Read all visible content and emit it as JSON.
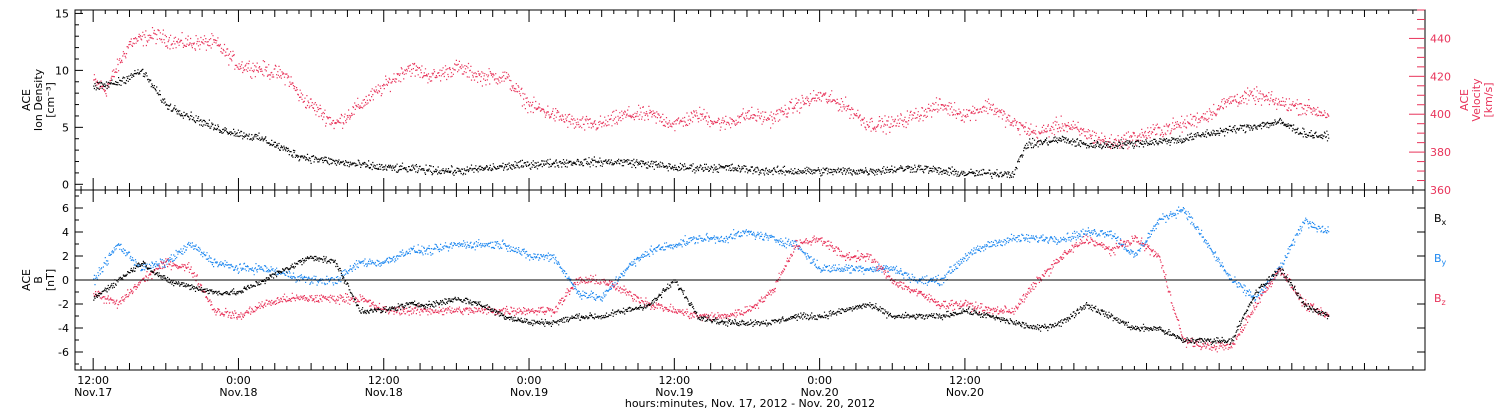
{
  "colors": {
    "black": "#000000",
    "red": "#e8335a",
    "blue": "#1e88f0",
    "frame": "#000000"
  },
  "chart_data": [
    {
      "type": "scatter",
      "panel": "top",
      "ylabel_left": [
        "ACE",
        "Ion Density",
        "[cm⁻³]"
      ],
      "ylabel_right": [
        "ACE",
        "Velocity",
        "[km/s]"
      ],
      "ylim_left": [
        -0.5,
        15.3
      ],
      "yticks_left": [
        0,
        5,
        10,
        15
      ],
      "ylim_right": [
        360,
        455
      ],
      "yticks_right": [
        360,
        380,
        400,
        420,
        440
      ],
      "series": [
        {
          "axis": "left",
          "color": "#000000",
          "knots": [
            [
              0,
              8.5
            ],
            [
              2,
              9
            ],
            [
              4,
              10
            ],
            [
              6,
              7
            ],
            [
              8,
              6
            ],
            [
              10,
              5
            ],
            [
              12,
              4.5
            ],
            [
              14,
              4
            ],
            [
              16,
              3
            ],
            [
              17,
              2.5
            ],
            [
              20,
              2
            ],
            [
              24,
              1.5
            ],
            [
              30,
              1.2
            ],
            [
              36,
              1.8
            ],
            [
              40,
              2
            ],
            [
              44,
              2
            ],
            [
              46,
              1.8
            ],
            [
              48,
              1.5
            ],
            [
              50,
              1.5
            ],
            [
              52,
              1.5
            ],
            [
              56,
              1.2
            ],
            [
              60,
              1.2
            ],
            [
              64,
              1.2
            ],
            [
              68,
              1.5
            ],
            [
              70,
              1.2
            ],
            [
              72,
              1.0
            ],
            [
              76,
              1.0
            ],
            [
              77,
              3.5
            ],
            [
              80,
              4
            ],
            [
              82,
              3.5
            ],
            [
              84,
              3.5
            ],
            [
              88,
              3.8
            ],
            [
              90,
              4
            ],
            [
              92,
              4.5
            ],
            [
              95,
              5
            ],
            [
              98,
              5.5
            ],
            [
              100,
              4.5
            ],
            [
              102,
              4.2
            ]
          ],
          "x_range": [
            0,
            102
          ]
        },
        {
          "axis": "right",
          "color": "#e8335a",
          "knots": [
            [
              0,
              418
            ],
            [
              1,
              413
            ],
            [
              3,
              438
            ],
            [
              5,
              442
            ],
            [
              7,
              438
            ],
            [
              10,
              438
            ],
            [
              12,
              426
            ],
            [
              14,
              424
            ],
            [
              16,
              420
            ],
            [
              17,
              410
            ],
            [
              20,
              395
            ],
            [
              22,
              405
            ],
            [
              24,
              415
            ],
            [
              26,
              425
            ],
            [
              28,
              420
            ],
            [
              30,
              425
            ],
            [
              32,
              420
            ],
            [
              34,
              420
            ],
            [
              36,
              405
            ],
            [
              38,
              400
            ],
            [
              40,
              395
            ],
            [
              42,
              395
            ],
            [
              44,
              400
            ],
            [
              46,
              400
            ],
            [
              48,
              395
            ],
            [
              50,
              400
            ],
            [
              52,
              395
            ],
            [
              54,
              400
            ],
            [
              56,
              398
            ],
            [
              58,
              405
            ],
            [
              60,
              410
            ],
            [
              62,
              405
            ],
            [
              64,
              395
            ],
            [
              66,
              395
            ],
            [
              68,
              400
            ],
            [
              70,
              405
            ],
            [
              72,
              400
            ],
            [
              74,
              405
            ],
            [
              76,
              395
            ],
            [
              78,
              390
            ],
            [
              80,
              395
            ],
            [
              82,
              390
            ],
            [
              84,
              385
            ],
            [
              86,
              388
            ],
            [
              88,
              392
            ],
            [
              90,
              395
            ],
            [
              92,
              400
            ],
            [
              94,
              408
            ],
            [
              96,
              410
            ],
            [
              98,
              406
            ],
            [
              100,
              404
            ],
            [
              102,
              400
            ]
          ],
          "x_range": [
            0,
            102
          ]
        }
      ]
    },
    {
      "type": "scatter",
      "panel": "bottom",
      "ylabel_left": [
        "ACE",
        "B",
        "[nT]"
      ],
      "ylim": [
        -7.5,
        7.5
      ],
      "yticks": [
        -6,
        -4,
        -2,
        0,
        2,
        4,
        6
      ],
      "zero_line": true,
      "legend_placement": "right",
      "series": [
        {
          "name": "Bx",
          "color": "#000000",
          "knots": [
            [
              0,
              -1.5
            ],
            [
              2,
              0
            ],
            [
              4,
              1.5
            ],
            [
              6,
              0
            ],
            [
              8,
              -0.5
            ],
            [
              10,
              -1
            ],
            [
              12,
              -1
            ],
            [
              14,
              0
            ],
            [
              16,
              1
            ],
            [
              18,
              2
            ],
            [
              20,
              1.5
            ],
            [
              22,
              -2.5
            ],
            [
              24,
              -2.5
            ],
            [
              26,
              -2
            ],
            [
              28,
              -2
            ],
            [
              30,
              -1.5
            ],
            [
              32,
              -2
            ],
            [
              34,
              -3
            ],
            [
              36,
              -3.5
            ],
            [
              38,
              -3.5
            ],
            [
              40,
              -3
            ],
            [
              42,
              -3
            ],
            [
              44,
              -2.5
            ],
            [
              46,
              -2
            ],
            [
              48,
              0
            ],
            [
              50,
              -3
            ],
            [
              52,
              -3.5
            ],
            [
              54,
              -3.5
            ],
            [
              56,
              -3.5
            ],
            [
              58,
              -3
            ],
            [
              60,
              -3
            ],
            [
              62,
              -2.5
            ],
            [
              64,
              -2
            ],
            [
              66,
              -3
            ],
            [
              68,
              -3
            ],
            [
              70,
              -3
            ],
            [
              72,
              -2.5
            ],
            [
              74,
              -3
            ],
            [
              76,
              -3.5
            ],
            [
              78,
              -4
            ],
            [
              80,
              -3.5
            ],
            [
              82,
              -2
            ],
            [
              84,
              -3
            ],
            [
              86,
              -4
            ],
            [
              88,
              -4
            ],
            [
              90,
              -5
            ],
            [
              92,
              -5
            ],
            [
              94,
              -5
            ],
            [
              96,
              -1
            ],
            [
              98,
              1
            ],
            [
              100,
              -2
            ],
            [
              102,
              -3
            ]
          ],
          "x_range": [
            0,
            102
          ]
        },
        {
          "name": "By",
          "color": "#1e88f0",
          "knots": [
            [
              0,
              0
            ],
            [
              2,
              3
            ],
            [
              4,
              1
            ],
            [
              6,
              1.5
            ],
            [
              8,
              3
            ],
            [
              10,
              1.5
            ],
            [
              12,
              1
            ],
            [
              14,
              1
            ],
            [
              16,
              0.5
            ],
            [
              18,
              0
            ],
            [
              20,
              0
            ],
            [
              22,
              1.5
            ],
            [
              24,
              1.5
            ],
            [
              26,
              2.5
            ],
            [
              28,
              2.5
            ],
            [
              30,
              3
            ],
            [
              32,
              3
            ],
            [
              34,
              3
            ],
            [
              36,
              2
            ],
            [
              38,
              2
            ],
            [
              40,
              -1
            ],
            [
              42,
              -1.5
            ],
            [
              44,
              1
            ],
            [
              46,
              2.5
            ],
            [
              48,
              3
            ],
            [
              50,
              3.5
            ],
            [
              52,
              3.5
            ],
            [
              54,
              4
            ],
            [
              56,
              3.5
            ],
            [
              58,
              3
            ],
            [
              60,
              1
            ],
            [
              62,
              1
            ],
            [
              64,
              1
            ],
            [
              66,
              1
            ],
            [
              68,
              0
            ],
            [
              70,
              0
            ],
            [
              72,
              2
            ],
            [
              74,
              3
            ],
            [
              76,
              3.5
            ],
            [
              78,
              3.5
            ],
            [
              80,
              3.5
            ],
            [
              82,
              4
            ],
            [
              84,
              4
            ],
            [
              86,
              2
            ],
            [
              88,
              5
            ],
            [
              90,
              6
            ],
            [
              92,
              3
            ],
            [
              94,
              0
            ],
            [
              96,
              -1.5
            ],
            [
              98,
              1
            ],
            [
              100,
              5
            ],
            [
              102,
              4
            ]
          ],
          "x_range": [
            0,
            102
          ]
        },
        {
          "name": "Bz",
          "color": "#e8335a",
          "knots": [
            [
              0,
              -1
            ],
            [
              2,
              -2
            ],
            [
              4,
              0
            ],
            [
              6,
              1.5
            ],
            [
              8,
              1
            ],
            [
              10,
              -2.5
            ],
            [
              12,
              -3
            ],
            [
              14,
              -2
            ],
            [
              16,
              -1.5
            ],
            [
              18,
              -1.5
            ],
            [
              20,
              -1.5
            ],
            [
              22,
              -1.5
            ],
            [
              24,
              -2.5
            ],
            [
              26,
              -2.5
            ],
            [
              28,
              -2.5
            ],
            [
              30,
              -2.5
            ],
            [
              32,
              -2.5
            ],
            [
              34,
              -2.5
            ],
            [
              36,
              -2.5
            ],
            [
              38,
              -2.5
            ],
            [
              40,
              0
            ],
            [
              42,
              0
            ],
            [
              44,
              -1
            ],
            [
              46,
              -2
            ],
            [
              48,
              -2.5
            ],
            [
              50,
              -3
            ],
            [
              52,
              -3
            ],
            [
              54,
              -2.5
            ],
            [
              56,
              -1
            ],
            [
              58,
              3
            ],
            [
              60,
              3.5
            ],
            [
              62,
              2
            ],
            [
              64,
              2
            ],
            [
              66,
              0
            ],
            [
              68,
              -1
            ],
            [
              70,
              -2
            ],
            [
              72,
              -2
            ],
            [
              74,
              -2.5
            ],
            [
              76,
              -2.5
            ],
            [
              78,
              0
            ],
            [
              80,
              2
            ],
            [
              82,
              3.5
            ],
            [
              84,
              2.5
            ],
            [
              86,
              3.5
            ],
            [
              88,
              2
            ],
            [
              90,
              -5
            ],
            [
              92,
              -5.5
            ],
            [
              94,
              -5.5
            ],
            [
              96,
              -2
            ],
            [
              98,
              1
            ],
            [
              100,
              -2
            ],
            [
              102,
              -3
            ]
          ],
          "x_range": [
            0,
            102
          ]
        }
      ]
    }
  ],
  "x_axis": {
    "range_hours": [
      -1.5,
      110
    ],
    "title": "hours:minutes, Nov. 17, 2012 - Nov. 20, 2012",
    "ticks": [
      {
        "hours": 0,
        "time": "12:00",
        "date": "Nov.17"
      },
      {
        "hours": 12,
        "time": "0:00",
        "date": "Nov.18"
      },
      {
        "hours": 24,
        "time": "12:00",
        "date": "Nov.18"
      },
      {
        "hours": 36,
        "time": "0:00",
        "date": "Nov.19"
      },
      {
        "hours": 48,
        "time": "12:00",
        "date": "Nov.19"
      },
      {
        "hours": 60,
        "time": "0:00",
        "date": "Nov.20"
      },
      {
        "hours": 72,
        "time": "12:00",
        "date": "Nov.20"
      }
    ]
  },
  "legend": [
    {
      "label": "B",
      "sub": "x",
      "color": "#000000"
    },
    {
      "label": "B",
      "sub": "y",
      "color": "#1e88f0"
    },
    {
      "label": "B",
      "sub": "z",
      "color": "#e8335a"
    }
  ]
}
